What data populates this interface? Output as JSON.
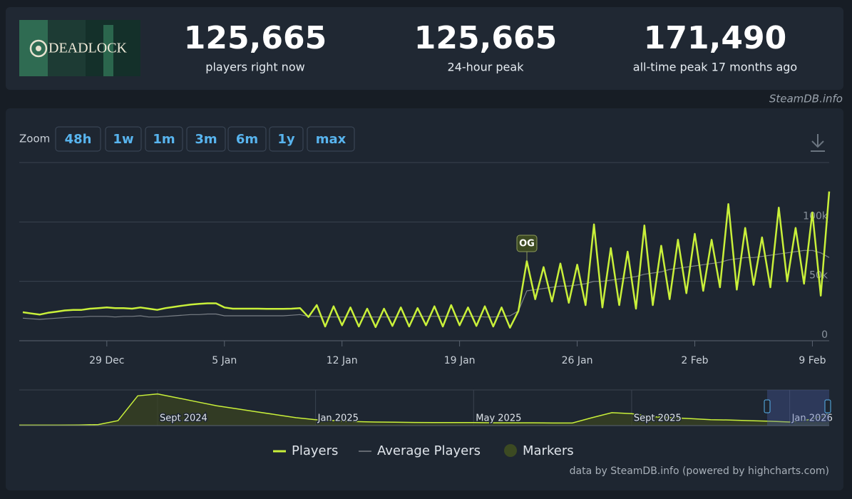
{
  "header": {
    "logo": "DEADLOCK",
    "stats": [
      {
        "value": "125,665",
        "label": "players right now"
      },
      {
        "value": "125,665",
        "label": "24-hour peak"
      },
      {
        "value": "171,490",
        "label": "all-time peak 17 months ago"
      }
    ]
  },
  "watermark": "SteamDB.info",
  "zoom": {
    "label": "Zoom",
    "buttons": [
      "48h",
      "1w",
      "1m",
      "3m",
      "6m",
      "1y",
      "max"
    ]
  },
  "chart_data": {
    "type": "line",
    "categories": [
      null,
      null,
      null,
      null,
      null,
      null,
      null,
      null,
      null,
      null,
      "29 Dec",
      null,
      null,
      null,
      null,
      null,
      null,
      null,
      null,
      null,
      null,
      null,
      null,
      null,
      "5 Jan",
      null,
      null,
      null,
      null,
      null,
      null,
      null,
      null,
      null,
      null,
      null,
      null,
      null,
      "12 Jan",
      null,
      null,
      null,
      null,
      null,
      null,
      null,
      null,
      null,
      null,
      null,
      null,
      null,
      "19 Jan",
      null,
      null,
      null,
      null,
      null,
      null,
      null,
      null,
      null,
      null,
      null,
      null,
      null,
      "26 Jan",
      null,
      null,
      null,
      null,
      null,
      null,
      null,
      null,
      null,
      null,
      null,
      null,
      null,
      "2 Feb",
      null,
      null,
      null,
      null,
      null,
      null,
      null,
      null,
      null,
      null,
      null,
      null,
      null,
      "9 Feb",
      null,
      null
    ],
    "series": [
      {
        "name": "Players",
        "color": "#c9f03a",
        "values": [
          24000,
          23000,
          22000,
          23500,
          24500,
          25500,
          26000,
          26000,
          27000,
          27500,
          28000,
          27500,
          27500,
          27000,
          28000,
          27000,
          26000,
          27500,
          28500,
          29500,
          30500,
          31000,
          31500,
          31500,
          28000,
          27000,
          27000,
          27000,
          27000,
          26800,
          26800,
          26800,
          27000,
          27500,
          20000,
          30000,
          12000,
          29000,
          13000,
          28000,
          12000,
          27000,
          11500,
          27000,
          12500,
          28000,
          12000,
          27500,
          13000,
          29000,
          12000,
          30000,
          13000,
          28000,
          12500,
          29000,
          12000,
          28000,
          11000,
          25000,
          67000,
          35000,
          62000,
          33000,
          65000,
          32000,
          64000,
          30000,
          98000,
          28000,
          78000,
          30000,
          75000,
          27000,
          97000,
          30000,
          80000,
          35000,
          85000,
          40000,
          90000,
          42000,
          85000,
          45000,
          115000,
          43000,
          95000,
          47000,
          87000,
          45000,
          112000,
          50000,
          95000,
          48000,
          108000,
          38000,
          125665
        ]
      },
      {
        "name": "Average Players",
        "color": "#7a7f86",
        "values": [
          19000,
          18500,
          18000,
          18500,
          19000,
          19500,
          20000,
          20000,
          20500,
          20500,
          20500,
          20000,
          20500,
          20500,
          21000,
          20000,
          20000,
          20500,
          21000,
          21500,
          22000,
          22000,
          22500,
          22500,
          21000,
          21000,
          21000,
          21000,
          21000,
          21000,
          21000,
          21000,
          21500,
          22000,
          20500,
          20500,
          20000,
          20000,
          20000,
          20000,
          20000,
          20000,
          20000,
          20000,
          20000,
          20000,
          20000,
          20500,
          20500,
          20500,
          20500,
          20500,
          20500,
          20500,
          20500,
          20000,
          20000,
          20500,
          21000,
          25000,
          42000,
          43000,
          44000,
          45000,
          46000,
          46000,
          47000,
          48000,
          50000,
          50000,
          51000,
          52000,
          53000,
          54000,
          56000,
          57000,
          58000,
          60000,
          61000,
          62000,
          63000,
          64000,
          65000,
          66000,
          68000,
          69000,
          70000,
          70000,
          71000,
          72000,
          73000,
          74000,
          75000,
          76000,
          76000,
          74000,
          70000
        ]
      }
    ],
    "markers": {
      "name": "Markers",
      "color": "#3c4a22",
      "labels": [
        "OG"
      ]
    },
    "ylim": [
      0,
      150000
    ],
    "yticks": [
      0,
      {
        "value": 50000,
        "label": "50k"
      },
      {
        "value": 100000,
        "label": "100k"
      }
    ],
    "grid": true,
    "navigator": {
      "categories": [
        null,
        null,
        null,
        null,
        null,
        null,
        null,
        "Sept 2024",
        null,
        null,
        null,
        null,
        null,
        null,
        null,
        "Jan 2025",
        null,
        null,
        null,
        null,
        null,
        null,
        null,
        "May 2025",
        null,
        null,
        null,
        null,
        null,
        null,
        null,
        "Sept 2025",
        null,
        null,
        null,
        null,
        null,
        null,
        null,
        "Jan 2026",
        null,
        null
      ],
      "values": [
        2000,
        2000,
        2000,
        3000,
        5000,
        25000,
        150000,
        160000,
        140000,
        120000,
        100000,
        85000,
        70000,
        55000,
        40000,
        30000,
        25000,
        20000,
        18000,
        17000,
        16000,
        15000,
        15000,
        15000,
        14000,
        14000,
        14000,
        13000,
        13000,
        40000,
        65000,
        60000,
        45000,
        40000,
        35000,
        30000,
        28000,
        25000,
        22000,
        18000,
        30000,
        60000
      ],
      "ylim": [
        0,
        180000
      ]
    },
    "credits": "data by SteamDB.info (powered by highcharts.com)"
  }
}
